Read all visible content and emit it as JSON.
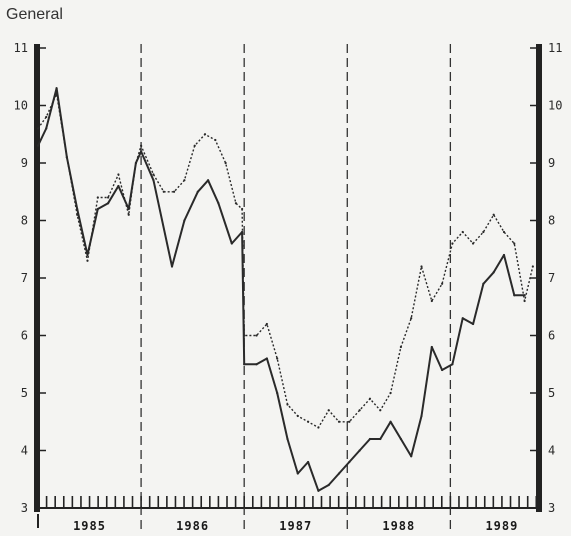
{
  "header": {
    "label": "General"
  },
  "chart_data": {
    "type": "line",
    "title": "",
    "xlabel": "",
    "ylabel": "",
    "ylim": [
      3,
      11
    ],
    "yticks": [
      3,
      4,
      5,
      6,
      7,
      8,
      9,
      10,
      11
    ],
    "xlim": [
      1985.0,
      1989.85
    ],
    "year_labels": [
      "1985",
      "1986",
      "1987",
      "1988",
      "1989"
    ],
    "year_label_positions": [
      1985.5,
      1986.5,
      1987.5,
      1988.5,
      1989.5
    ],
    "dividers": [
      1986.0,
      1987.0,
      1988.0,
      1989.0
    ],
    "grid": false,
    "series": [
      {
        "style": "solid",
        "x": [
          1985.0,
          1985.08,
          1985.18,
          1985.28,
          1985.38,
          1985.48,
          1985.58,
          1985.68,
          1985.78,
          1985.88,
          1985.95,
          1986.0,
          1986.12,
          1986.3,
          1986.42,
          1986.55,
          1986.65,
          1986.75,
          1986.88,
          1986.98,
          1987.0,
          1987.12,
          1987.22,
          1987.32,
          1987.42,
          1987.52,
          1987.62,
          1987.72,
          1987.82,
          1987.92,
          1988.02,
          1988.12,
          1988.22,
          1988.32,
          1988.42,
          1988.52,
          1988.62,
          1988.72,
          1988.82,
          1988.92,
          1989.02,
          1989.12,
          1989.22,
          1989.32,
          1989.42,
          1989.52,
          1989.62,
          1989.72
        ],
        "y": [
          9.3,
          9.6,
          10.3,
          9.1,
          8.2,
          7.4,
          8.2,
          8.3,
          8.6,
          8.2,
          9.0,
          9.2,
          8.7,
          7.2,
          8.0,
          8.5,
          8.7,
          8.3,
          7.6,
          7.8,
          5.5,
          5.5,
          5.6,
          5.0,
          4.2,
          3.6,
          3.8,
          3.3,
          3.4,
          3.6,
          3.8,
          4.0,
          4.2,
          4.2,
          4.5,
          4.2,
          3.9,
          4.6,
          5.8,
          5.4,
          5.5,
          6.3,
          6.2,
          6.9,
          7.1,
          7.4,
          6.7,
          6.7
        ]
      },
      {
        "style": "dotted",
        "x": [
          1985.0,
          1985.08,
          1985.18,
          1985.28,
          1985.38,
          1985.48,
          1985.58,
          1985.68,
          1985.78,
          1985.88,
          1985.95,
          1986.0,
          1986.12,
          1986.22,
          1986.32,
          1986.42,
          1986.52,
          1986.62,
          1986.72,
          1986.82,
          1986.92,
          1986.98,
          1987.0,
          1987.12,
          1987.22,
          1987.32,
          1987.42,
          1987.52,
          1987.62,
          1987.72,
          1987.82,
          1987.92,
          1988.02,
          1988.12,
          1988.22,
          1988.32,
          1988.42,
          1988.52,
          1988.62,
          1988.72,
          1988.82,
          1988.92,
          1989.02,
          1989.12,
          1989.22,
          1989.32,
          1989.42,
          1989.52,
          1989.62,
          1989.72,
          1989.8
        ],
        "y": [
          9.6,
          9.8,
          10.2,
          9.1,
          8.1,
          7.3,
          8.4,
          8.4,
          8.8,
          8.1,
          9.0,
          9.3,
          8.8,
          8.5,
          8.5,
          8.7,
          9.3,
          9.5,
          9.4,
          9.0,
          8.3,
          8.2,
          6.0,
          6.0,
          6.2,
          5.6,
          4.8,
          4.6,
          4.5,
          4.4,
          4.7,
          4.5,
          4.5,
          4.7,
          4.9,
          4.7,
          5.0,
          5.8,
          6.3,
          7.2,
          6.6,
          6.9,
          7.6,
          7.8,
          7.6,
          7.8,
          8.1,
          7.8,
          7.6,
          6.6,
          7.2
        ]
      }
    ]
  }
}
